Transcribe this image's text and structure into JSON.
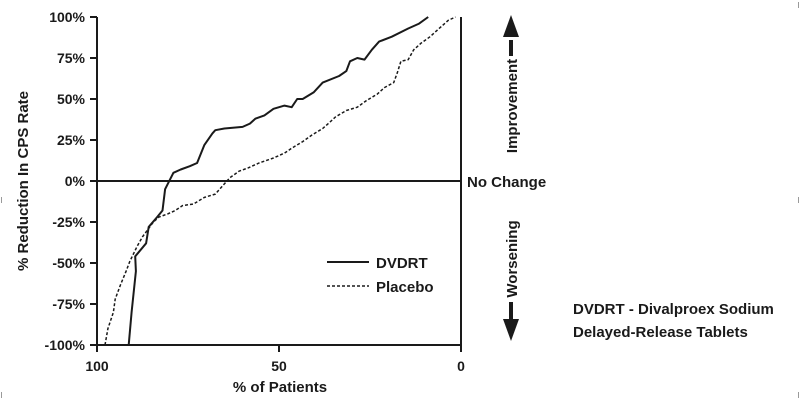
{
  "chart_data": {
    "type": "line",
    "xlabel": "% of Patients",
    "ylabel": "% Reduction In CPS Rate",
    "xlim": [
      100,
      0
    ],
    "ylim": [
      -100,
      100
    ],
    "x_direction": "reversed",
    "x_ticks": [
      100,
      50,
      0
    ],
    "x_tick_labels": [
      "100",
      "50",
      "0"
    ],
    "y_ticks": [
      100,
      75,
      50,
      25,
      0,
      -25,
      -50,
      -75,
      -100
    ],
    "y_tick_labels": [
      "100%",
      "75%",
      "50%",
      "25%",
      "0%",
      "-25%",
      "-50%",
      "-75%",
      "-100%"
    ],
    "reference_line": {
      "y": 0,
      "label": "No Change"
    },
    "legend": {
      "placement": "lower-center",
      "entries": [
        "DVDRT",
        "Placebo"
      ]
    },
    "series": [
      {
        "name": "DVDRT",
        "style": "solid",
        "points": [
          [
            91.3,
            -100
          ],
          [
            90.5,
            -80
          ],
          [
            89.3,
            -55
          ],
          [
            89.5,
            -46
          ],
          [
            86.5,
            -38
          ],
          [
            85.8,
            -28
          ],
          [
            83.5,
            -22
          ],
          [
            82.0,
            -18
          ],
          [
            81.3,
            -5
          ],
          [
            79.0,
            5
          ],
          [
            77.0,
            7
          ],
          [
            74.5,
            9
          ],
          [
            72.5,
            11
          ],
          [
            70.5,
            22
          ],
          [
            68.3,
            29
          ],
          [
            67.5,
            31
          ],
          [
            65.0,
            32
          ],
          [
            60.0,
            33
          ],
          [
            58.0,
            35
          ],
          [
            56.5,
            38
          ],
          [
            54.0,
            40
          ],
          [
            51.5,
            44
          ],
          [
            48.5,
            46
          ],
          [
            46.5,
            45
          ],
          [
            45.0,
            50
          ],
          [
            43.5,
            50
          ],
          [
            40.5,
            54
          ],
          [
            38.0,
            60
          ],
          [
            33.5,
            64
          ],
          [
            31.5,
            67
          ],
          [
            30.5,
            73
          ],
          [
            28.5,
            75
          ],
          [
            26.5,
            74
          ],
          [
            24.5,
            80
          ],
          [
            22.5,
            85
          ],
          [
            19.0,
            88
          ],
          [
            14.5,
            93
          ],
          [
            11.5,
            96
          ],
          [
            9.0,
            100
          ]
        ]
      },
      {
        "name": "Placebo",
        "style": "dashed",
        "points": [
          [
            97.8,
            -100
          ],
          [
            97.0,
            -90
          ],
          [
            95.5,
            -80
          ],
          [
            95.0,
            -72
          ],
          [
            93.5,
            -63
          ],
          [
            92.0,
            -55
          ],
          [
            91.0,
            -49
          ],
          [
            89.0,
            -40
          ],
          [
            87.5,
            -34
          ],
          [
            85.5,
            -28
          ],
          [
            84.5,
            -25
          ],
          [
            83.0,
            -22
          ],
          [
            80.5,
            -20
          ],
          [
            78.5,
            -18
          ],
          [
            76.5,
            -15
          ],
          [
            73.5,
            -14
          ],
          [
            70.5,
            -10
          ],
          [
            67.5,
            -8
          ],
          [
            65.5,
            -3
          ],
          [
            63.5,
            2
          ],
          [
            61.0,
            6
          ],
          [
            58.5,
            8
          ],
          [
            55.5,
            11
          ],
          [
            51.5,
            14
          ],
          [
            48.5,
            17
          ],
          [
            46.5,
            20
          ],
          [
            43.5,
            24
          ],
          [
            41.0,
            28
          ],
          [
            38.0,
            32
          ],
          [
            36.0,
            36
          ],
          [
            34.5,
            39
          ],
          [
            31.5,
            43
          ],
          [
            28.5,
            45
          ],
          [
            26.0,
            49
          ],
          [
            23.0,
            53
          ],
          [
            21.0,
            57
          ],
          [
            18.5,
            60
          ],
          [
            17.5,
            66
          ],
          [
            16.5,
            73
          ],
          [
            14.5,
            74
          ],
          [
            13.0,
            80
          ],
          [
            11.0,
            84
          ],
          [
            8.5,
            88
          ],
          [
            5.5,
            94
          ],
          [
            3.5,
            98
          ],
          [
            1.5,
            100
          ]
        ]
      }
    ],
    "annotations": {
      "improvement": "Improvement",
      "worsening": "Worsening",
      "note_line1": "DVDRT - Divalproex Sodium",
      "note_line2": "Delayed-Release Tablets"
    }
  }
}
